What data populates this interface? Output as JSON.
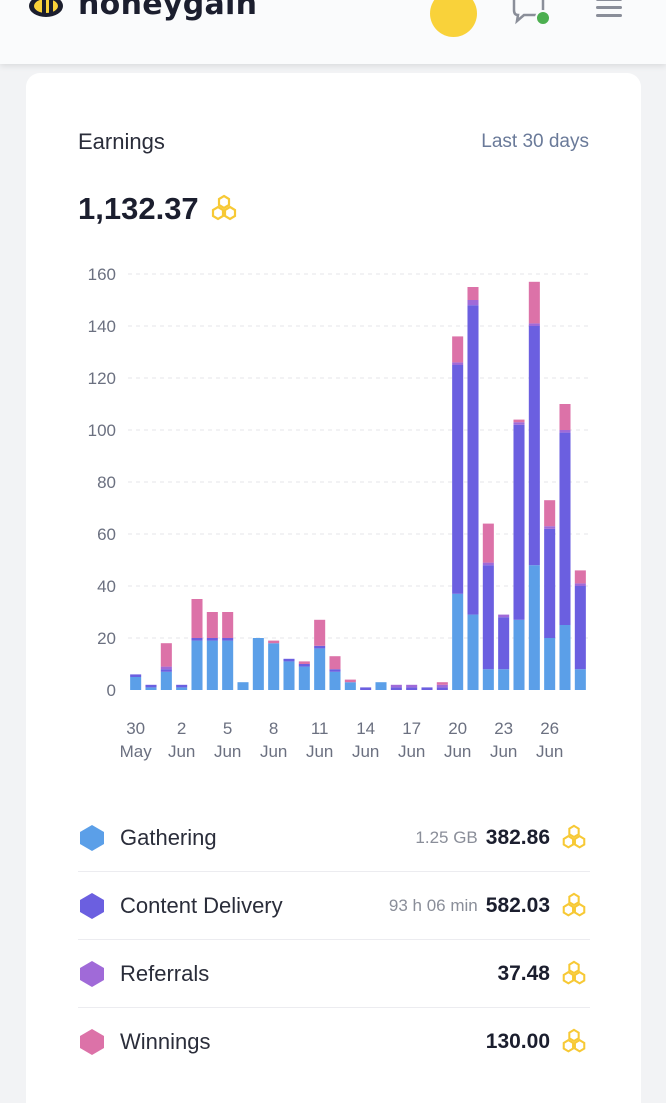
{
  "brand": {
    "name": "honeygain"
  },
  "card": {
    "title": "Earnings",
    "period": "Last 30 days",
    "total": "1,132.37"
  },
  "colors": {
    "gathering": "#5b9fe8",
    "content_delivery": "#6b5fe0",
    "referrals": "#a06ad8",
    "winnings": "#dc72a8",
    "honey": "#f7c935"
  },
  "chart_data": {
    "type": "bar",
    "stacked": true,
    "ylim": [
      0,
      160
    ],
    "y_ticks": [
      0,
      20,
      40,
      60,
      80,
      100,
      120,
      140,
      160
    ],
    "x_tick_labels": [
      [
        "30",
        "May"
      ],
      [
        "2",
        "Jun"
      ],
      [
        "5",
        "Jun"
      ],
      [
        "8",
        "Jun"
      ],
      [
        "11",
        "Jun"
      ],
      [
        "14",
        "Jun"
      ],
      [
        "17",
        "Jun"
      ],
      [
        "20",
        "Jun"
      ],
      [
        "23",
        "Jun"
      ],
      [
        "26",
        "Jun"
      ]
    ],
    "x_tick_index": [
      0,
      3,
      6,
      9,
      12,
      15,
      18,
      21,
      24,
      27
    ],
    "grid": true,
    "series": [
      {
        "name": "Gathering",
        "color": "#5b9fe8",
        "values": [
          5,
          1,
          7,
          1,
          19,
          19,
          19,
          3,
          20,
          18,
          11,
          9,
          16,
          7,
          3,
          0,
          3,
          0,
          0,
          0,
          0,
          37,
          29,
          8,
          8,
          27,
          48,
          20,
          25,
          8
        ]
      },
      {
        "name": "Content Delivery",
        "color": "#6b5fe0",
        "values": [
          1,
          1,
          1,
          1,
          1,
          1,
          1,
          0,
          0,
          0,
          1,
          1,
          1,
          1,
          0,
          1,
          0,
          1,
          1,
          1,
          1,
          88,
          119,
          40,
          20,
          75,
          92,
          42,
          74,
          32
        ]
      },
      {
        "name": "Referrals",
        "color": "#a06ad8",
        "values": [
          0,
          0,
          1,
          0,
          0,
          0,
          0,
          0,
          0,
          0,
          0,
          0,
          0,
          0,
          0,
          0,
          0,
          1,
          1,
          0,
          1,
          1,
          2,
          1,
          1,
          1,
          1,
          1,
          1,
          1
        ]
      },
      {
        "name": "Winnings",
        "color": "#dc72a8",
        "values": [
          0,
          0,
          9,
          0,
          15,
          10,
          10,
          0,
          0,
          1,
          0,
          1,
          10,
          5,
          1,
          0,
          0,
          0,
          0,
          0,
          1,
          10,
          5,
          15,
          0,
          1,
          16,
          10,
          10,
          5
        ]
      }
    ]
  },
  "legend": [
    {
      "label": "Gathering",
      "sub": "1.25 GB",
      "value": "382.86",
      "color": "#5b9fe8"
    },
    {
      "label": "Content Delivery",
      "sub": "93 h 06 min",
      "value": "582.03",
      "color": "#6b5fe0"
    },
    {
      "label": "Referrals",
      "sub": "",
      "value": "37.48",
      "color": "#a06ad8"
    },
    {
      "label": "Winnings",
      "sub": "",
      "value": "130.00",
      "color": "#dc72a8"
    }
  ]
}
